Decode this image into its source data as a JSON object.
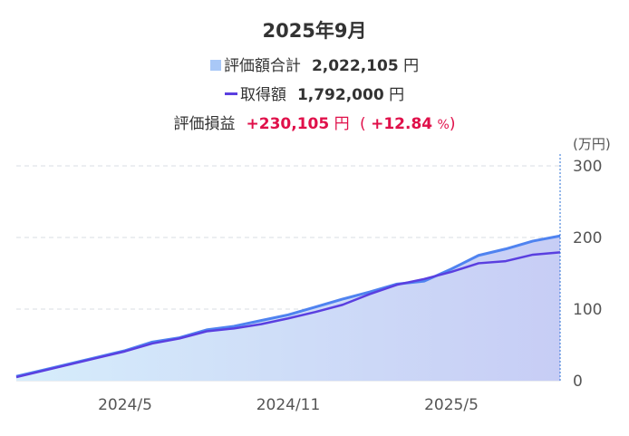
{
  "header": {
    "title": "2025年9月",
    "valuation_label": "評価額合計",
    "valuation_value": "2,022,105",
    "valuation_unit": "円",
    "cost_label": "取得額",
    "cost_value": "1,792,000",
    "cost_unit": "円",
    "gain_label": "評価損益",
    "gain_value": "+230,105",
    "gain_unit": "円",
    "gain_pct_open": "(",
    "gain_pct_value": "+12.84",
    "gain_pct_unit": "%",
    "gain_pct_close": ")"
  },
  "colors": {
    "valuation": "#4f83f0",
    "valuation_swatch": "#a9c8f7",
    "cost": "#5a3fe0",
    "gain": "#e0104a",
    "grid": "#d9dde3",
    "cursor": "#2a6fd6"
  },
  "chart_data": {
    "type": "area",
    "y_unit": "(万円)",
    "ylim": [
      0,
      300
    ],
    "yticks": [
      0,
      100,
      200,
      300
    ],
    "x_ticks": [
      "2024/5",
      "2024/11",
      "2025/5"
    ],
    "x": [
      "2024/1",
      "2024/2",
      "2024/3",
      "2024/4",
      "2024/5",
      "2024/6",
      "2024/7",
      "2024/8",
      "2024/9",
      "2024/10",
      "2024/11",
      "2024/12",
      "2025/1",
      "2025/2",
      "2025/3",
      "2025/4",
      "2025/5",
      "2025/6",
      "2025/7",
      "2025/8",
      "2025/9"
    ],
    "series": [
      {
        "name": "評価額合計",
        "values": [
          6,
          15,
          24,
          33,
          42,
          54,
          60,
          71,
          76,
          84,
          92,
          103,
          114,
          124,
          135,
          139,
          156,
          175,
          184,
          195,
          202.2
        ]
      },
      {
        "name": "取得額",
        "values": [
          5,
          14,
          23,
          32,
          41,
          52,
          59,
          69,
          73,
          79,
          87,
          96,
          106,
          121,
          134,
          142,
          152,
          164,
          167,
          176,
          179.2
        ]
      }
    ],
    "grid": true,
    "cursor": "2025/9"
  }
}
